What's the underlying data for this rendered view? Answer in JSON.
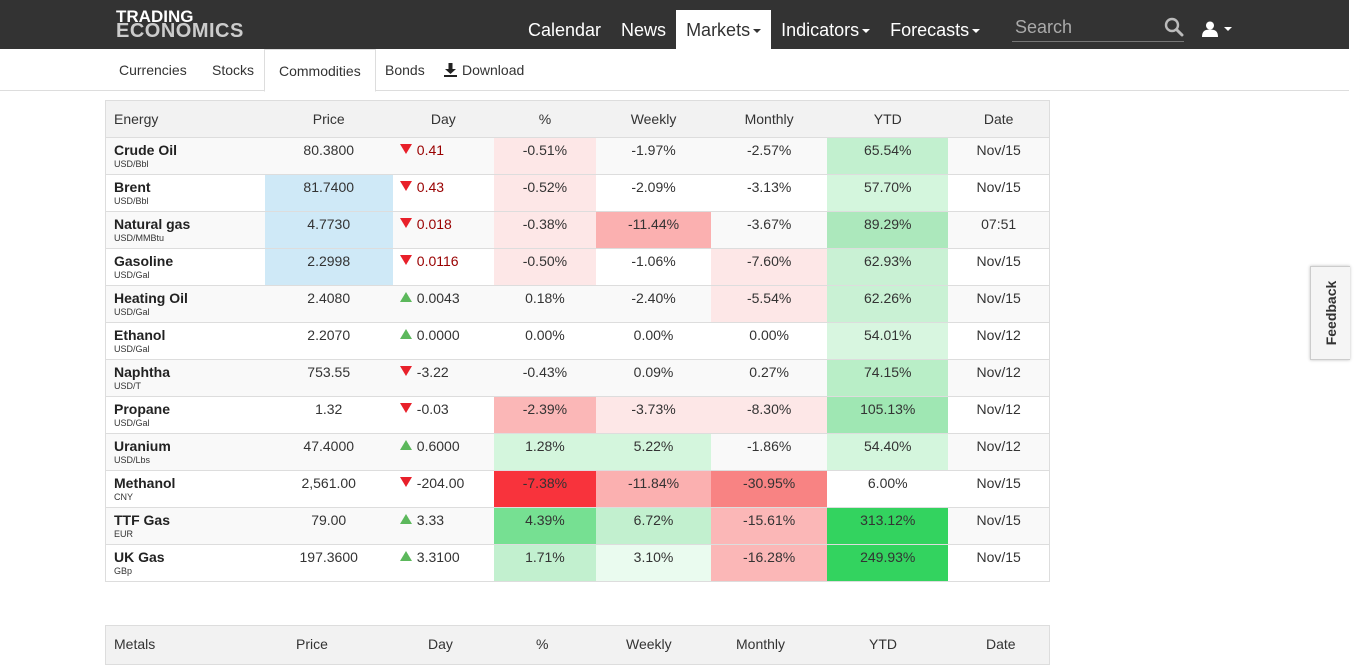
{
  "brand": {
    "line1": "TRADING",
    "line2": "ECONOMICS"
  },
  "nav": {
    "items": [
      {
        "label": "Calendar",
        "dropdown": false,
        "active": false
      },
      {
        "label": "News",
        "dropdown": false,
        "active": false
      },
      {
        "label": "Markets",
        "dropdown": true,
        "active": true
      },
      {
        "label": "Indicators",
        "dropdown": true,
        "active": false
      },
      {
        "label": "Forecasts",
        "dropdown": true,
        "active": false
      }
    ],
    "search_placeholder": "Search"
  },
  "subtabs": {
    "currencies": "Currencies",
    "stocks": "Stocks",
    "commodities": "Commodities",
    "bonds": "Bonds",
    "download": "Download"
  },
  "table": {
    "headers": [
      "Energy",
      "Price",
      "Day",
      "%",
      "Weekly",
      "Monthly",
      "YTD",
      "Date"
    ],
    "rows": [
      {
        "name": "Crude Oil",
        "unit": "USD/Bbl",
        "price": "80.3800",
        "day": "0.41",
        "day_dir": "down",
        "pct": "-0.51%",
        "weekly": "-1.97%",
        "monthly": "-2.57%",
        "ytd": "65.54%",
        "date": "Nov/15",
        "price_bg": "",
        "pct_bg": "#fde7e7",
        "weekly_bg": "",
        "monthly_bg": "",
        "ytd_bg": "#c2f0cf"
      },
      {
        "name": "Brent",
        "unit": "USD/Bbl",
        "price": "81.7400",
        "day": "0.43",
        "day_dir": "down",
        "pct": "-0.52%",
        "weekly": "-2.09%",
        "monthly": "-3.13%",
        "ytd": "57.70%",
        "date": "Nov/15",
        "price_bg": "#cfe9f7",
        "pct_bg": "#fde7e7",
        "weekly_bg": "",
        "monthly_bg": "",
        "ytd_bg": "#d4f6dd"
      },
      {
        "name": "Natural gas",
        "unit": "USD/MMBtu",
        "price": "4.7730",
        "day": "0.018",
        "day_dir": "down",
        "pct": "-0.38%",
        "weekly": "-11.44%",
        "monthly": "-3.67%",
        "ytd": "89.29%",
        "date": "07:51",
        "price_bg": "#cfe9f7",
        "pct_bg": "#fde7e7",
        "weekly_bg": "#fbb0b0",
        "monthly_bg": "",
        "ytd_bg": "#ace8bc"
      },
      {
        "name": "Gasoline",
        "unit": "USD/Gal",
        "price": "2.2998",
        "day": "0.0116",
        "day_dir": "down",
        "pct": "-0.50%",
        "weekly": "-1.06%",
        "monthly": "-7.60%",
        "ytd": "62.93%",
        "date": "Nov/15",
        "price_bg": "#cfe9f7",
        "pct_bg": "#fde7e7",
        "weekly_bg": "",
        "monthly_bg": "#fde7e7",
        "ytd_bg": "#c9f1d4"
      },
      {
        "name": "Heating Oil",
        "unit": "USD/Gal",
        "price": "2.4080",
        "day": "0.0043",
        "day_dir": "up",
        "pct": "0.18%",
        "weekly": "-2.40%",
        "monthly": "-5.54%",
        "ytd": "62.26%",
        "date": "Nov/15",
        "price_bg": "",
        "pct_bg": "",
        "weekly_bg": "",
        "monthly_bg": "#fde7e7",
        "ytd_bg": "#c9f1d4"
      },
      {
        "name": "Ethanol",
        "unit": "USD/Gal",
        "price": "2.2070",
        "day": "0.0000",
        "day_dir": "up",
        "pct": "0.00%",
        "weekly": "0.00%",
        "monthly": "0.00%",
        "ytd": "54.01%",
        "date": "Nov/12",
        "price_bg": "",
        "pct_bg": "",
        "weekly_bg": "",
        "monthly_bg": "",
        "ytd_bg": "#d8f6e0"
      },
      {
        "name": "Naphtha",
        "unit": "USD/T",
        "price": "753.55",
        "day": "-3.22",
        "day_dir": "down",
        "pct": "-0.43%",
        "weekly": "0.09%",
        "monthly": "0.27%",
        "ytd": "74.15%",
        "date": "Nov/12",
        "price_bg": "",
        "pct_bg": "",
        "weekly_bg": "",
        "monthly_bg": "",
        "ytd_bg": "#b9eec7"
      },
      {
        "name": "Propane",
        "unit": "USD/Gal",
        "price": "1.32",
        "day": "-0.03",
        "day_dir": "down",
        "pct": "-2.39%",
        "weekly": "-3.73%",
        "monthly": "-8.30%",
        "ytd": "105.13%",
        "date": "Nov/12",
        "price_bg": "",
        "pct_bg": "#fbb7b7",
        "weekly_bg": "#fde7e7",
        "monthly_bg": "#fde7e7",
        "ytd_bg": "#9fe7b3"
      },
      {
        "name": "Uranium",
        "unit": "USD/Lbs",
        "price": "47.4000",
        "day": "0.6000",
        "day_dir": "up",
        "pct": "1.28%",
        "weekly": "5.22%",
        "monthly": "-1.86%",
        "ytd": "54.40%",
        "date": "Nov/12",
        "price_bg": "",
        "pct_bg": "#d4f6dd",
        "weekly_bg": "#d4f6dd",
        "monthly_bg": "",
        "ytd_bg": "#d4f6dd"
      },
      {
        "name": "Methanol",
        "unit": "CNY",
        "price": "2,561.00",
        "day": "-204.00",
        "day_dir": "down",
        "pct": "-7.38%",
        "weekly": "-11.84%",
        "monthly": "-30.95%",
        "ytd": "6.00%",
        "date": "Nov/15",
        "price_bg": "",
        "pct_bg": "#f8333c",
        "weekly_bg": "#fbb0b0",
        "monthly_bg": "#f88383",
        "ytd_bg": ""
      },
      {
        "name": "TTF Gas",
        "unit": "EUR",
        "price": "79.00",
        "day": "3.33",
        "day_dir": "up",
        "pct": "4.39%",
        "weekly": "6.72%",
        "monthly": "-15.61%",
        "ytd": "313.12%",
        "date": "Nov/15",
        "price_bg": "",
        "pct_bg": "#76e092",
        "weekly_bg": "#c2f0cf",
        "monthly_bg": "#fbb7b7",
        "ytd_bg": "#33d35f"
      },
      {
        "name": "UK Gas",
        "unit": "GBp",
        "price": "197.3600",
        "day": "3.3100",
        "day_dir": "up",
        "pct": "1.71%",
        "weekly": "3.10%",
        "monthly": "-16.28%",
        "ytd": "249.93%",
        "date": "Nov/15",
        "price_bg": "",
        "pct_bg": "#c2f0cf",
        "weekly_bg": "#eafbef",
        "monthly_bg": "#fbb7b7",
        "ytd_bg": "#33d35f"
      }
    ]
  },
  "table2": {
    "headers": [
      "Metals",
      "Price",
      "Day",
      "%",
      "Weekly",
      "Monthly",
      "YTD",
      "Date"
    ]
  },
  "feedback": {
    "label": "Feedback"
  }
}
